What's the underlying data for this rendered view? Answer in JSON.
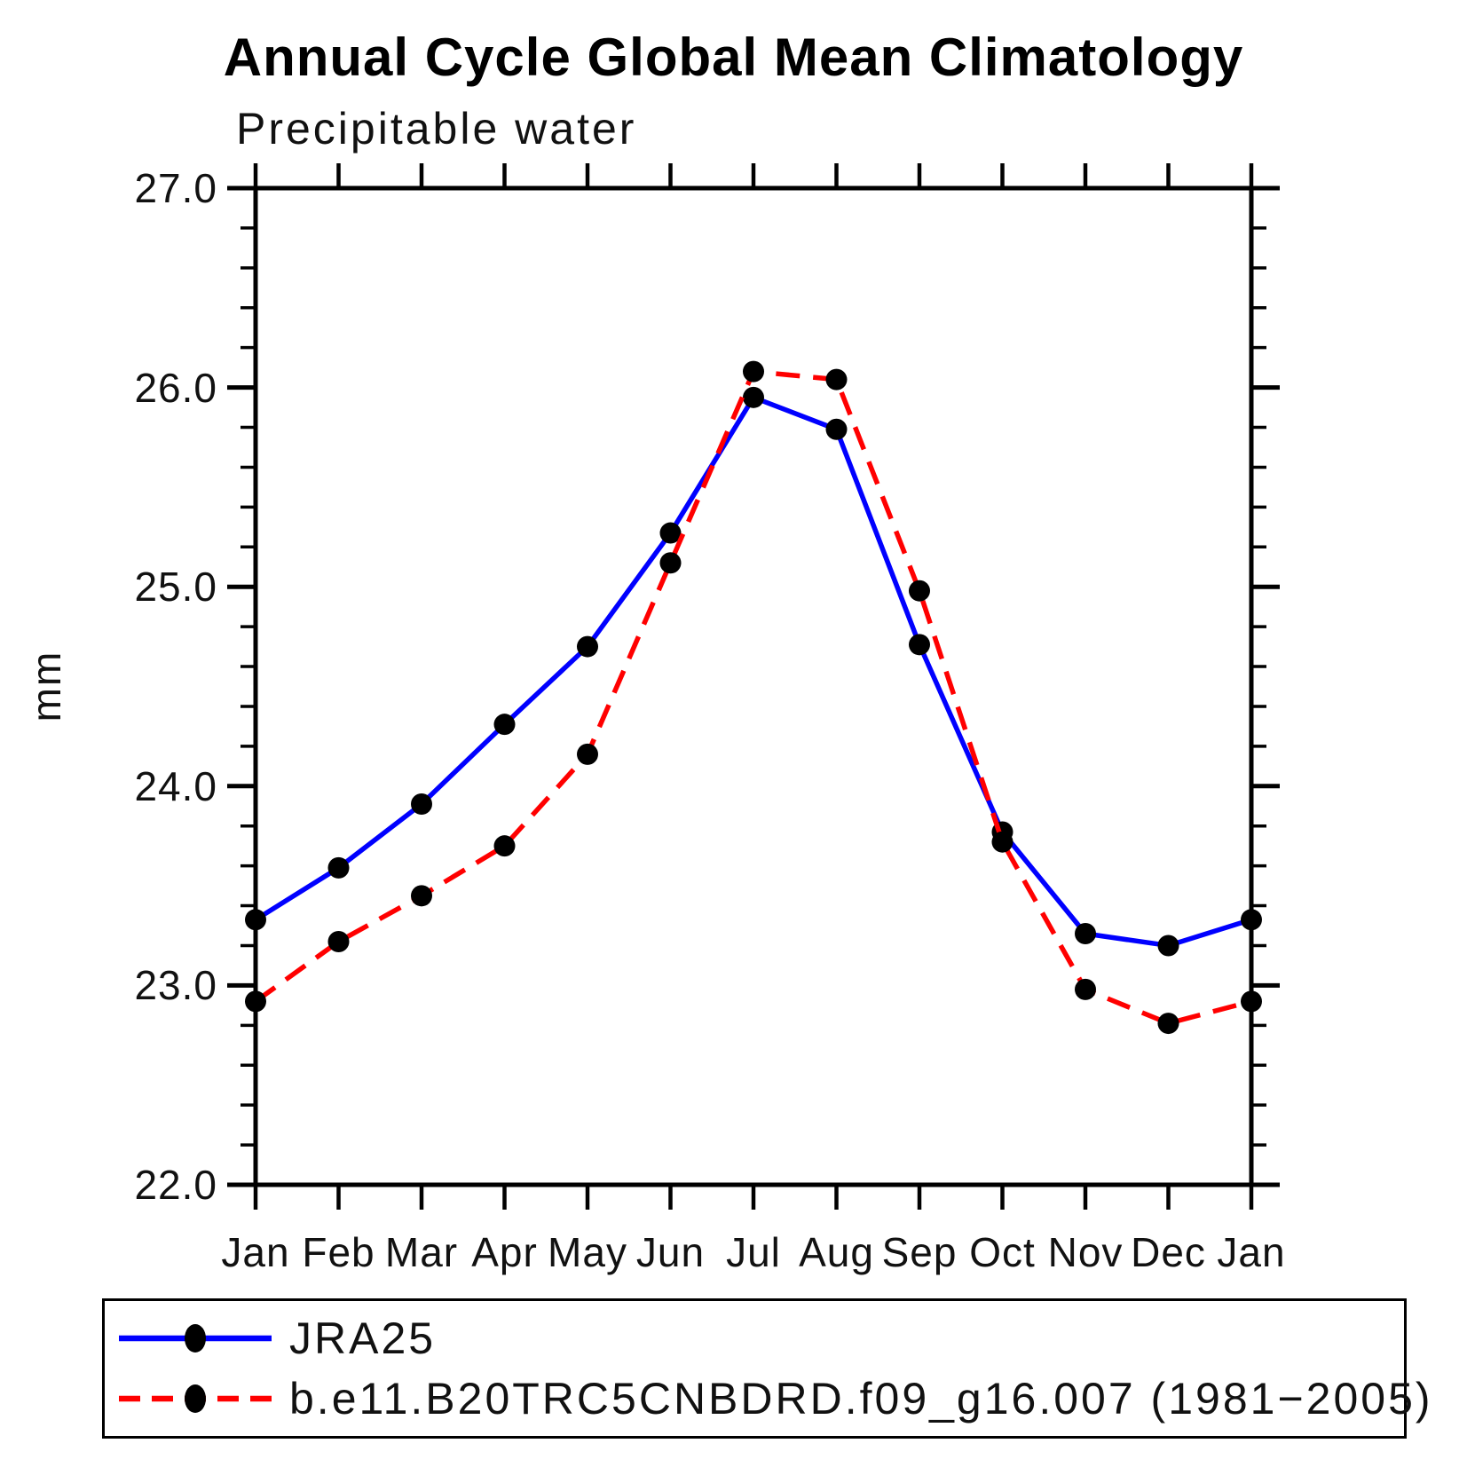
{
  "title": "Annual Cycle Global Mean Climatology",
  "subtitle": "Precipitable water",
  "ylabel": "mm",
  "colors": {
    "series1": "#0000ff",
    "series2": "#ff0000",
    "marker": "#000000",
    "axis": "#000000"
  },
  "legend": {
    "items": [
      {
        "label": "JRA25",
        "style": "solid",
        "color": "#0000ff"
      },
      {
        "label": "b.e11.B20TRC5CNBDRD.f09_g16.007 (1981−2005)",
        "style": "dashed",
        "color": "#ff0000"
      }
    ]
  },
  "chart_data": {
    "type": "line",
    "title": "Annual Cycle Global Mean Climatology",
    "subtitle": "Precipitable water",
    "ylabel": "mm",
    "categories": [
      "Jan",
      "Feb",
      "Mar",
      "Apr",
      "May",
      "Jun",
      "Jul",
      "Aug",
      "Sep",
      "Oct",
      "Nov",
      "Dec",
      "Jan"
    ],
    "series": [
      {
        "name": "JRA25",
        "color": "#0000ff",
        "dash": false,
        "values": [
          23.33,
          23.59,
          23.91,
          24.31,
          24.7,
          25.27,
          25.95,
          25.79,
          24.71,
          23.77,
          23.26,
          23.2,
          23.33
        ]
      },
      {
        "name": "b.e11.B20TRC5CNBDRD.f09_g16.007 (1981−2005)",
        "color": "#ff0000",
        "dash": true,
        "values": [
          22.92,
          23.22,
          23.45,
          23.7,
          24.16,
          25.12,
          26.08,
          26.04,
          24.98,
          23.72,
          22.98,
          22.81,
          22.92
        ]
      }
    ],
    "ylim": [
      22.0,
      27.0
    ],
    "ytick_values": [
      27.0,
      26.0,
      25.0,
      24.0,
      23.0,
      22.0
    ],
    "ytick_labels": [
      "27.0",
      "26.0",
      "25.0",
      "24.0",
      "23.0",
      "22.0"
    ],
    "minor_tick_step": 0.2,
    "grid": false,
    "markers": "filled-circle",
    "legend_position": "bottom"
  }
}
